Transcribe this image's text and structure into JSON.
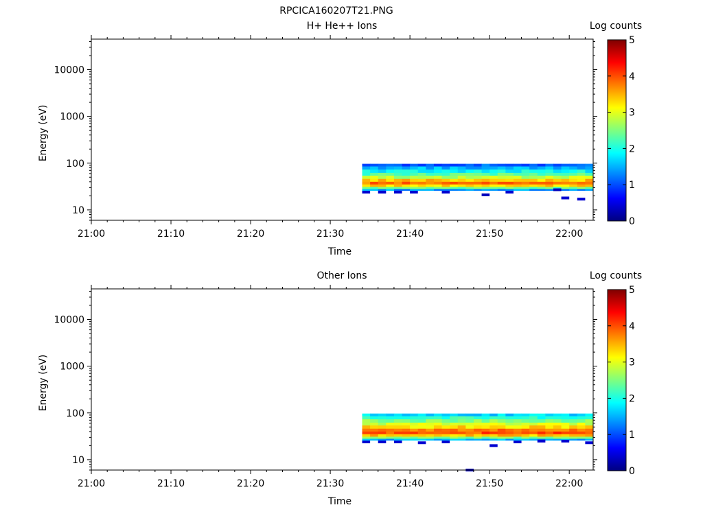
{
  "figure": {
    "title": "RPCICA160207T21.PNG"
  },
  "colors": {
    "colormap": [
      "#00007f",
      "#0000ff",
      "#007fff",
      "#00ffff",
      "#7fff7f",
      "#ffff00",
      "#ff7f00",
      "#ff0000",
      "#7f0000"
    ],
    "axes": "#000000",
    "background": "#ffffff"
  },
  "chart_data": [
    {
      "type": "heatmap",
      "title": "H+ He++ Ions",
      "xlabel": "Time",
      "ylabel": "Energy (eV)",
      "x_ticks": [
        "21:00",
        "21:10",
        "21:20",
        "21:30",
        "21:40",
        "21:50",
        "22:00"
      ],
      "xlim": [
        "21:00",
        "22:03"
      ],
      "y_scale": "log",
      "y_ticks": [
        "10",
        "100",
        "1000",
        "10000"
      ],
      "ylim": [
        6,
        45000
      ],
      "colorbar": {
        "label": "Log counts",
        "ticks": [
          "0",
          "1",
          "2",
          "3",
          "4",
          "5"
        ],
        "range": [
          0,
          5
        ]
      },
      "data_start": "21:34",
      "data_end": "22:03",
      "time_bin_min": 1,
      "energy_band_eV": [
        {
          "lo": 85,
          "hi": 97,
          "level": 1.1
        },
        {
          "lo": 73,
          "hi": 85,
          "level": 1.5
        },
        {
          "lo": 62,
          "hi": 73,
          "level": 1.9
        },
        {
          "lo": 54,
          "hi": 62,
          "level": 2.3
        },
        {
          "lo": 46,
          "hi": 54,
          "level": 2.8
        },
        {
          "lo": 40,
          "hi": 46,
          "level": 3.4
        },
        {
          "lo": 35,
          "hi": 40,
          "level": 3.8
        },
        {
          "lo": 31,
          "hi": 35,
          "level": 3.3
        },
        {
          "lo": 28,
          "hi": 31,
          "level": 2.4
        },
        {
          "lo": 26,
          "hi": 28,
          "level": 1.4
        }
      ],
      "sparse_points": [
        {
          "time": "21:34",
          "energy": 24,
          "level": 0.4
        },
        {
          "time": "21:36",
          "energy": 24,
          "level": 0.4
        },
        {
          "time": "21:38",
          "energy": 24,
          "level": 0.4
        },
        {
          "time": "21:40",
          "energy": 24,
          "level": 0.4
        },
        {
          "time": "21:44",
          "energy": 24,
          "level": 0.4
        },
        {
          "time": "21:49",
          "energy": 21,
          "level": 0.3
        },
        {
          "time": "21:52",
          "energy": 24,
          "level": 0.4
        },
        {
          "time": "21:58",
          "energy": 27,
          "level": 0.3
        },
        {
          "time": "21:59",
          "energy": 18,
          "level": 0.4
        },
        {
          "time": "22:01",
          "energy": 17,
          "level": 0.4
        }
      ]
    },
    {
      "type": "heatmap",
      "title": "Other Ions",
      "xlabel": "Time",
      "ylabel": "Energy (eV)",
      "x_ticks": [
        "21:00",
        "21:10",
        "21:20",
        "21:30",
        "21:40",
        "21:50",
        "22:00"
      ],
      "xlim": [
        "21:00",
        "22:03"
      ],
      "y_scale": "log",
      "y_ticks": [
        "10",
        "100",
        "1000",
        "10000"
      ],
      "ylim": [
        6,
        45000
      ],
      "colorbar": {
        "label": "Log counts",
        "ticks": [
          "0",
          "1",
          "2",
          "3",
          "4",
          "5"
        ],
        "range": [
          0,
          5
        ]
      },
      "data_start": "21:34",
      "data_end": "22:03",
      "time_bin_min": 1,
      "energy_band_eV": [
        {
          "lo": 85,
          "hi": 97,
          "level": 1.7
        },
        {
          "lo": 73,
          "hi": 85,
          "level": 2.1
        },
        {
          "lo": 62,
          "hi": 73,
          "level": 2.5
        },
        {
          "lo": 54,
          "hi": 62,
          "level": 2.9
        },
        {
          "lo": 46,
          "hi": 54,
          "level": 3.3
        },
        {
          "lo": 40,
          "hi": 46,
          "level": 3.8
        },
        {
          "lo": 35,
          "hi": 40,
          "level": 4.0
        },
        {
          "lo": 31,
          "hi": 35,
          "level": 3.4
        },
        {
          "lo": 28,
          "hi": 31,
          "level": 2.5
        },
        {
          "lo": 26,
          "hi": 28,
          "level": 1.5
        }
      ],
      "sparse_points": [
        {
          "time": "21:34",
          "energy": 24,
          "level": 0.4
        },
        {
          "time": "21:36",
          "energy": 24,
          "level": 0.4
        },
        {
          "time": "21:38",
          "energy": 24,
          "level": 0.4
        },
        {
          "time": "21:41",
          "energy": 23,
          "level": 0.4
        },
        {
          "time": "21:44",
          "energy": 24,
          "level": 0.4
        },
        {
          "time": "21:47",
          "energy": 6,
          "level": 0.3
        },
        {
          "time": "21:50",
          "energy": 20,
          "level": 0.4
        },
        {
          "time": "21:53",
          "energy": 24,
          "level": 0.4
        },
        {
          "time": "21:56",
          "energy": 25,
          "level": 0.4
        },
        {
          "time": "21:59",
          "energy": 25,
          "level": 0.4
        },
        {
          "time": "22:02",
          "energy": 23,
          "level": 0.4
        }
      ]
    }
  ]
}
